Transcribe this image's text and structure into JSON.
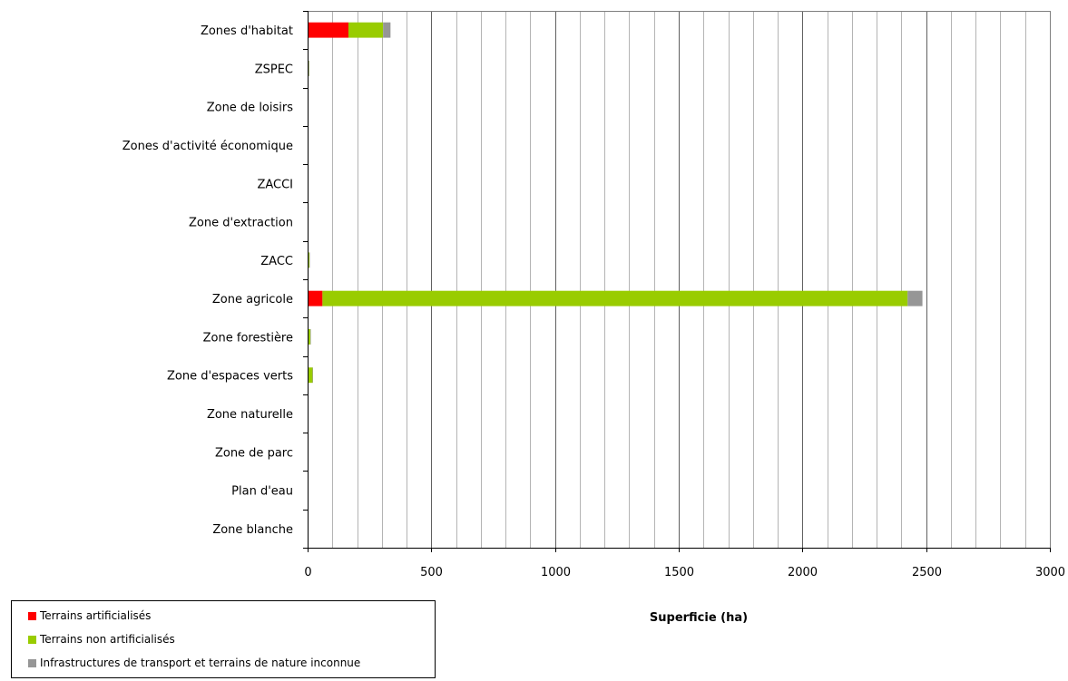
{
  "chart_data": {
    "type": "bar",
    "orientation": "horizontal",
    "stacked": true,
    "categories": [
      "Zones d'habitat",
      "ZSPEC",
      "Zone de loisirs",
      "Zones d'activité économique",
      "ZACCI",
      "Zone d'extraction",
      "ZACC",
      "Zone agricole",
      "Zone forestière",
      "Zone d'espaces verts",
      "Zone naturelle",
      "Zone de parc",
      "Plan d'eau",
      "Zone blanche"
    ],
    "series": [
      {
        "name": "Terrains artificialisés",
        "color": "#ff0000",
        "values": [
          165,
          3,
          0,
          0,
          0,
          0,
          1,
          60,
          1,
          2,
          0,
          0,
          0,
          0
        ]
      },
      {
        "name": "Terrains non artificialisés",
        "color": "#99cc00",
        "values": [
          140,
          2,
          0,
          0,
          0,
          0,
          6,
          2365,
          10,
          18,
          0,
          0,
          0,
          0
        ]
      },
      {
        "name": "Infrastructures de transport et terrains de nature inconnue",
        "color": "#969696",
        "values": [
          30,
          2,
          0,
          0,
          0,
          0,
          1,
          60,
          1,
          1,
          0,
          0,
          0,
          0
        ]
      }
    ],
    "xlabel": "Superficie (ha)",
    "ylabel": "",
    "xlim": [
      0,
      3000
    ],
    "major_ticks": [
      0,
      500,
      1000,
      1500,
      2000,
      2500,
      3000
    ],
    "minor_step": 100,
    "grid": true,
    "legend_position": "bottom-left"
  }
}
